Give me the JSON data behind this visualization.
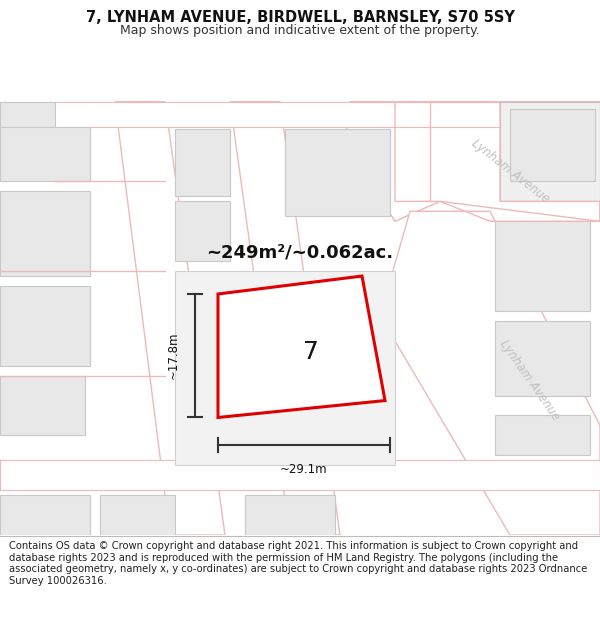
{
  "title_line1": "7, LYNHAM AVENUE, BIRDWELL, BARNSLEY, S70 5SY",
  "title_line2": "Map shows position and indicative extent of the property.",
  "footer_text": "Contains OS data © Crown copyright and database right 2021. This information is subject to Crown copyright and database rights 2023 and is reproduced with the permission of HM Land Registry. The polygons (including the associated geometry, namely x, y co-ordinates) are subject to Crown copyright and database rights 2023 Ordnance Survey 100026316.",
  "bg_color": "#ffffff",
  "map_bg": "#ffffff",
  "road_color": "#f0b8b8",
  "building_fill": "#e8e8e8",
  "building_stroke": "#c8c8c8",
  "highlight_stroke": "#e00000",
  "highlight_fill": "#ffffff",
  "dim_color": "#333333",
  "road_label_color": "#c0c0c0",
  "area_text": "~249m²/~0.062ac.",
  "number_text": "7",
  "width_label": "~29.1m",
  "height_label": "~17.8m",
  "road_label1": "Lynham Avenue",
  "road_label2": "Lynham Avenue",
  "title_fontsize": 10.5,
  "subtitle_fontsize": 9,
  "footer_fontsize": 7.2,
  "area_fontsize": 13,
  "number_fontsize": 18,
  "dim_fontsize": 8.5
}
